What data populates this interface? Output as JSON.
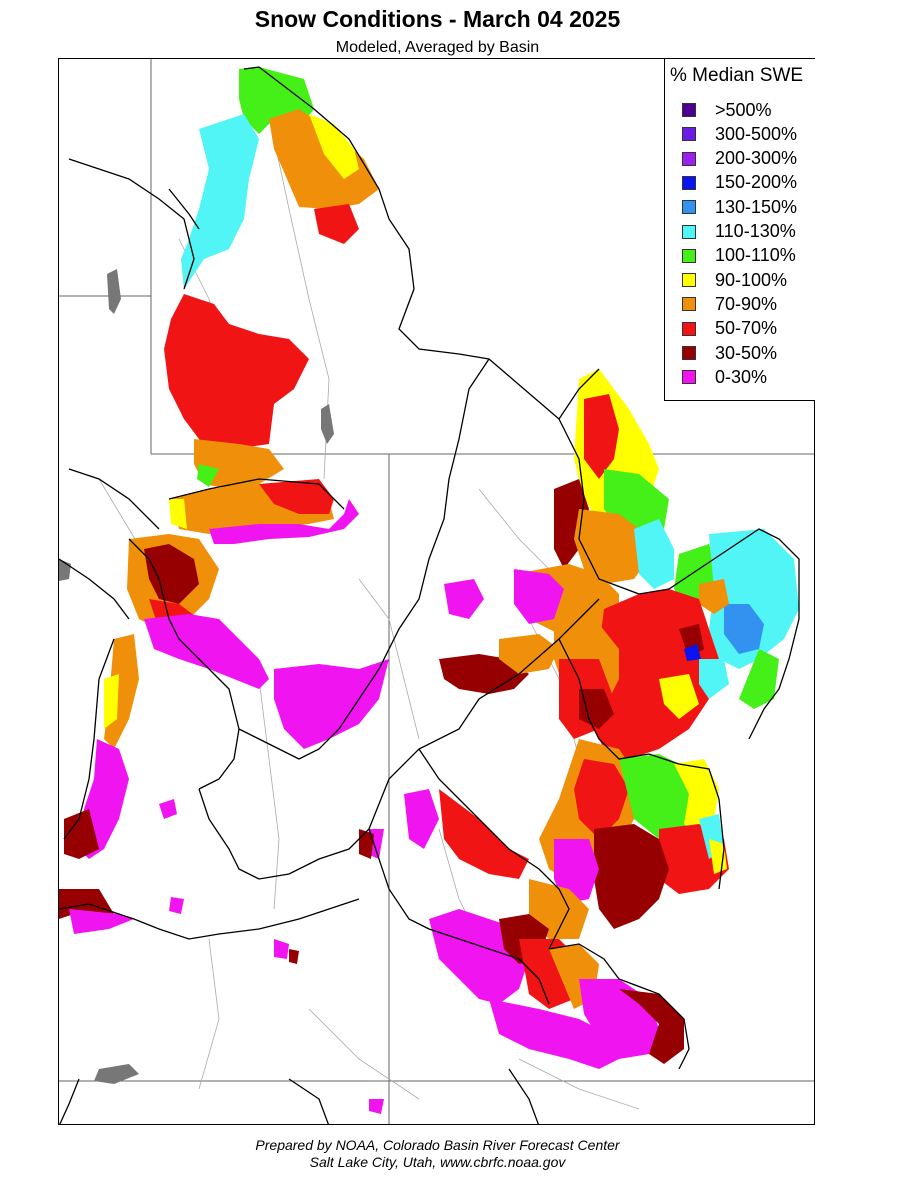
{
  "header": {
    "title": "Snow Conditions - March 04 2025",
    "subtitle": "Modeled, Averaged by Basin"
  },
  "legend": {
    "title": "% Median SWE",
    "items": [
      {
        "label": ">500%",
        "color": "#4b0092"
      },
      {
        "label": "300-500%",
        "color": "#6a1be6"
      },
      {
        "label": "200-300%",
        "color": "#9a1ff0"
      },
      {
        "label": "150-200%",
        "color": "#0a14f0"
      },
      {
        "label": "130-150%",
        "color": "#3391f0"
      },
      {
        "label": "110-130%",
        "color": "#52f5f5"
      },
      {
        "label": "100-110%",
        "color": "#45f019"
      },
      {
        "label": "90-100%",
        "color": "#ffff00"
      },
      {
        "label": "70-90%",
        "color": "#f0900a"
      },
      {
        "label": "50-70%",
        "color": "#f01414"
      },
      {
        "label": "30-50%",
        "color": "#960000"
      },
      {
        "label": "0-30%",
        "color": "#f014f0"
      }
    ]
  },
  "footer": {
    "line1": "Prepared by NOAA, Colorado Basin River Forecast Center",
    "line2": "Salt Lake City, Utah, www.cbrfc.noaa.gov"
  }
}
